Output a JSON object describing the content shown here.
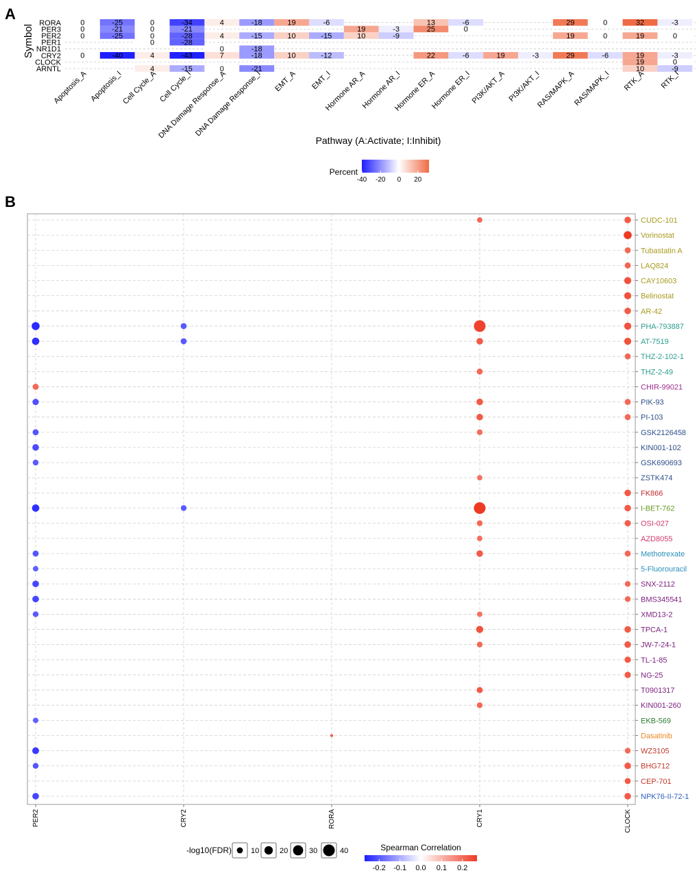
{
  "panel_a": {
    "panel_label": "A",
    "chart_data": {
      "type": "heatmap",
      "ylabel": "Symbol",
      "xlabel": "Pathway (A:Activate; I:Inhibit)",
      "legend_title": "Percent",
      "legend_ticks": [
        "-40",
        "-20",
        "0",
        "20"
      ],
      "color_range": [
        -40,
        32
      ],
      "rows": [
        "RORA",
        "PER3",
        "PER2",
        "PER1",
        "NR1D1",
        "CRY2",
        "CLOCK",
        "ARNTL"
      ],
      "columns": [
        "Apoptosis_A",
        "Apoptosis_I",
        "Cell Cycle_A",
        "Cell Cycle_I",
        "DNA Damage Response_A",
        "DNA Damage Response_I",
        "EMT_A",
        "EMT_I",
        "Hormone AR_A",
        "Hormone AR_I",
        "Hormone ER_A",
        "Hormone ER_I",
        "PI3K/AKT_A",
        "PI3K/AKT_I",
        "RAS/MAPK_A",
        "RAS/MAPK_I",
        "RTK_A",
        "RTK_I"
      ],
      "cells": [
        {
          "row": "RORA",
          "col": "Apoptosis_A",
          "value": 0
        },
        {
          "row": "RORA",
          "col": "Apoptosis_I",
          "value": -25
        },
        {
          "row": "RORA",
          "col": "Cell Cycle_A",
          "value": 0
        },
        {
          "row": "RORA",
          "col": "Cell Cycle_I",
          "value": -34
        },
        {
          "row": "RORA",
          "col": "DNA Damage Response_A",
          "value": 4
        },
        {
          "row": "RORA",
          "col": "DNA Damage Response_I",
          "value": -18
        },
        {
          "row": "RORA",
          "col": "EMT_A",
          "value": 19
        },
        {
          "row": "RORA",
          "col": "EMT_I",
          "value": -6
        },
        {
          "row": "RORA",
          "col": "Hormone ER_A",
          "value": 13
        },
        {
          "row": "RORA",
          "col": "Hormone ER_I",
          "value": -6
        },
        {
          "row": "RORA",
          "col": "RAS/MAPK_A",
          "value": 29
        },
        {
          "row": "RORA",
          "col": "RAS/MAPK_I",
          "value": 0
        },
        {
          "row": "RORA",
          "col": "RTK_A",
          "value": 32
        },
        {
          "row": "RORA",
          "col": "RTK_I",
          "value": -3
        },
        {
          "row": "PER3",
          "col": "Apoptosis_A",
          "value": 0
        },
        {
          "row": "PER3",
          "col": "Apoptosis_I",
          "value": -21
        },
        {
          "row": "PER3",
          "col": "Cell Cycle_A",
          "value": 0
        },
        {
          "row": "PER3",
          "col": "Cell Cycle_I",
          "value": -21
        },
        {
          "row": "PER3",
          "col": "Hormone AR_A",
          "value": 19
        },
        {
          "row": "PER3",
          "col": "Hormone AR_I",
          "value": -3
        },
        {
          "row": "PER3",
          "col": "Hormone ER_A",
          "value": 25
        },
        {
          "row": "PER3",
          "col": "Hormone ER_I",
          "value": 0
        },
        {
          "row": "PER2",
          "col": "Apoptosis_A",
          "value": 0
        },
        {
          "row": "PER2",
          "col": "Apoptosis_I",
          "value": -25
        },
        {
          "row": "PER2",
          "col": "Cell Cycle_A",
          "value": 0
        },
        {
          "row": "PER2",
          "col": "Cell Cycle_I",
          "value": -28
        },
        {
          "row": "PER2",
          "col": "DNA Damage Response_A",
          "value": 4
        },
        {
          "row": "PER2",
          "col": "DNA Damage Response_I",
          "value": -15
        },
        {
          "row": "PER2",
          "col": "EMT_A",
          "value": 10
        },
        {
          "row": "PER2",
          "col": "EMT_I",
          "value": -15
        },
        {
          "row": "PER2",
          "col": "Hormone AR_A",
          "value": 10
        },
        {
          "row": "PER2",
          "col": "Hormone AR_I",
          "value": -9
        },
        {
          "row": "PER2",
          "col": "RAS/MAPK_A",
          "value": 19
        },
        {
          "row": "PER2",
          "col": "RAS/MAPK_I",
          "value": 0
        },
        {
          "row": "PER2",
          "col": "RTK_A",
          "value": 19
        },
        {
          "row": "PER2",
          "col": "RTK_I",
          "value": 0
        },
        {
          "row": "PER1",
          "col": "Cell Cycle_A",
          "value": 0
        },
        {
          "row": "PER1",
          "col": "Cell Cycle_I",
          "value": -28
        },
        {
          "row": "NR1D1",
          "col": "DNA Damage Response_A",
          "value": 0
        },
        {
          "row": "NR1D1",
          "col": "DNA Damage Response_I",
          "value": -18
        },
        {
          "row": "CRY2",
          "col": "Apoptosis_A",
          "value": 0
        },
        {
          "row": "CRY2",
          "col": "Apoptosis_I",
          "value": -40
        },
        {
          "row": "CRY2",
          "col": "Cell Cycle_A",
          "value": 4
        },
        {
          "row": "CRY2",
          "col": "Cell Cycle_I",
          "value": -43
        },
        {
          "row": "CRY2",
          "col": "DNA Damage Response_A",
          "value": 7
        },
        {
          "row": "CRY2",
          "col": "DNA Damage Response_I",
          "value": -18
        },
        {
          "row": "CRY2",
          "col": "EMT_A",
          "value": 10
        },
        {
          "row": "CRY2",
          "col": "EMT_I",
          "value": -12
        },
        {
          "row": "CRY2",
          "col": "Hormone ER_A",
          "value": 22
        },
        {
          "row": "CRY2",
          "col": "Hormone ER_I",
          "value": -6
        },
        {
          "row": "CRY2",
          "col": "PI3K/AKT_A",
          "value": 19
        },
        {
          "row": "CRY2",
          "col": "PI3K/AKT_I",
          "value": -3
        },
        {
          "row": "CRY2",
          "col": "RAS/MAPK_A",
          "value": 29
        },
        {
          "row": "CRY2",
          "col": "RAS/MAPK_I",
          "value": -6
        },
        {
          "row": "CRY2",
          "col": "RTK_A",
          "value": 19
        },
        {
          "row": "CRY2",
          "col": "RTK_I",
          "value": -3
        },
        {
          "row": "CLOCK",
          "col": "RTK_A",
          "value": 19
        },
        {
          "row": "CLOCK",
          "col": "RTK_I",
          "value": 0
        },
        {
          "row": "ARNTL",
          "col": "Cell Cycle_A",
          "value": 4
        },
        {
          "row": "ARNTL",
          "col": "Cell Cycle_I",
          "value": -15
        },
        {
          "row": "ARNTL",
          "col": "DNA Damage Response_A",
          "value": 0
        },
        {
          "row": "ARNTL",
          "col": "DNA Damage Response_I",
          "value": -21
        },
        {
          "row": "ARNTL",
          "col": "RTK_A",
          "value": 10
        },
        {
          "row": "ARNTL",
          "col": "RTK_I",
          "value": -9
        }
      ]
    }
  },
  "panel_b": {
    "panel_label": "B",
    "chart_data": {
      "type": "scatter",
      "genes": [
        "PER2",
        "CRY2",
        "RORA",
        "CRY1",
        "CLOCK"
      ],
      "drugs": [
        {
          "name": "CUDC-101",
          "color": "#a89a1e"
        },
        {
          "name": "Vorinostat",
          "color": "#a89a1e"
        },
        {
          "name": "Tubastatin A",
          "color": "#a89a1e"
        },
        {
          "name": "LAQ824",
          "color": "#a89a1e"
        },
        {
          "name": "CAY10603",
          "color": "#a89a1e"
        },
        {
          "name": "Belinostat",
          "color": "#a89a1e"
        },
        {
          "name": "AR-42",
          "color": "#a89a1e"
        },
        {
          "name": "PHA-793887",
          "color": "#2a9d8f"
        },
        {
          "name": "AT-7519",
          "color": "#2a9d8f"
        },
        {
          "name": "THZ-2-102-1",
          "color": "#2a9d8f"
        },
        {
          "name": "THZ-2-49",
          "color": "#2a9d8f"
        },
        {
          "name": "CHIR-99021",
          "color": "#9b2f8c"
        },
        {
          "name": "PIK-93",
          "color": "#2d4e8a"
        },
        {
          "name": "PI-103",
          "color": "#2d4e8a"
        },
        {
          "name": "GSK2126458",
          "color": "#2d4e8a"
        },
        {
          "name": "KIN001-102",
          "color": "#2d4e8a"
        },
        {
          "name": "GSK690693",
          "color": "#2d4e8a"
        },
        {
          "name": "ZSTK474",
          "color": "#2d4e8a"
        },
        {
          "name": "FK866",
          "color": "#c0282d"
        },
        {
          "name": "I-BET-762",
          "color": "#6a9a2a"
        },
        {
          "name": "OSI-027",
          "color": "#d33a6a"
        },
        {
          "name": "AZD8055",
          "color": "#d33a6a"
        },
        {
          "name": "Methotrexate",
          "color": "#2a8fb8"
        },
        {
          "name": "5-Fluorouracil",
          "color": "#2a8fb8"
        },
        {
          "name": "SNX-2112",
          "color": "#7b1e7e"
        },
        {
          "name": "BMS345541",
          "color": "#7b1e7e"
        },
        {
          "name": "XMD13-2",
          "color": "#7b1e7e"
        },
        {
          "name": "TPCA-1",
          "color": "#7b1e7e"
        },
        {
          "name": "JW-7-24-1",
          "color": "#7b1e7e"
        },
        {
          "name": "TL-1-85",
          "color": "#7b1e7e"
        },
        {
          "name": "NG-25",
          "color": "#7b1e7e"
        },
        {
          "name": "T0901317",
          "color": "#7b1e7e"
        },
        {
          "name": "KIN001-260",
          "color": "#7b1e7e"
        },
        {
          "name": "EKB-569",
          "color": "#2e7d32"
        },
        {
          "name": "Dasatinib",
          "color": "#e8871e"
        },
        {
          "name": "WZ3105",
          "color": "#c0392b"
        },
        {
          "name": "BHG712",
          "color": "#c0392b"
        },
        {
          "name": "CEP-701",
          "color": "#c0392b"
        },
        {
          "name": "NPK76-II-72-1",
          "color": "#2d5fbf"
        }
      ],
      "points": [
        {
          "gene": "CRY1",
          "drug": "CUDC-101",
          "corr": 0.17,
          "fdr": 8
        },
        {
          "gene": "CLOCK",
          "drug": "CUDC-101",
          "corr": 0.2,
          "fdr": 12
        },
        {
          "gene": "CLOCK",
          "drug": "Vorinostat",
          "corr": 0.27,
          "fdr": 18
        },
        {
          "gene": "CLOCK",
          "drug": "Tubastatin A",
          "corr": 0.17,
          "fdr": 10
        },
        {
          "gene": "CLOCK",
          "drug": "LAQ824",
          "corr": 0.18,
          "fdr": 10
        },
        {
          "gene": "CLOCK",
          "drug": "CAY10603",
          "corr": 0.22,
          "fdr": 14
        },
        {
          "gene": "CLOCK",
          "drug": "Belinostat",
          "corr": 0.22,
          "fdr": 14
        },
        {
          "gene": "CLOCK",
          "drug": "AR-42",
          "corr": 0.2,
          "fdr": 12
        },
        {
          "gene": "PER2",
          "drug": "PHA-793887",
          "corr": -0.25,
          "fdr": 18
        },
        {
          "gene": "CRY2",
          "drug": "PHA-793887",
          "corr": -0.16,
          "fdr": 10
        },
        {
          "gene": "CRY1",
          "drug": "PHA-793887",
          "corr": 0.25,
          "fdr": 40
        },
        {
          "gene": "CLOCK",
          "drug": "PHA-793887",
          "corr": 0.22,
          "fdr": 14
        },
        {
          "gene": "PER2",
          "drug": "AT-7519",
          "corr": -0.24,
          "fdr": 15
        },
        {
          "gene": "CRY2",
          "drug": "AT-7519",
          "corr": -0.16,
          "fdr": 10
        },
        {
          "gene": "CRY1",
          "drug": "AT-7519",
          "corr": 0.2,
          "fdr": 12
        },
        {
          "gene": "CLOCK",
          "drug": "AT-7519",
          "corr": 0.22,
          "fdr": 14
        },
        {
          "gene": "CLOCK",
          "drug": "THZ-2-102-1",
          "corr": 0.17,
          "fdr": 10
        },
        {
          "gene": "CRY1",
          "drug": "THZ-2-49",
          "corr": 0.17,
          "fdr": 10
        },
        {
          "gene": "PER2",
          "drug": "CHIR-99021",
          "corr": 0.17,
          "fdr": 10
        },
        {
          "gene": "PER2",
          "drug": "PIK-93",
          "corr": -0.18,
          "fdr": 11
        },
        {
          "gene": "CRY1",
          "drug": "PIK-93",
          "corr": 0.2,
          "fdr": 12
        },
        {
          "gene": "CLOCK",
          "drug": "PIK-93",
          "corr": 0.17,
          "fdr": 10
        },
        {
          "gene": "CRY1",
          "drug": "PI-103",
          "corr": 0.2,
          "fdr": 12
        },
        {
          "gene": "CLOCK",
          "drug": "PI-103",
          "corr": 0.17,
          "fdr": 10
        },
        {
          "gene": "PER2",
          "drug": "GSK2126458",
          "corr": -0.17,
          "fdr": 10
        },
        {
          "gene": "CRY1",
          "drug": "GSK2126458",
          "corr": 0.16,
          "fdr": 9
        },
        {
          "gene": "PER2",
          "drug": "KIN001-102",
          "corr": -0.19,
          "fdr": 12
        },
        {
          "gene": "PER2",
          "drug": "GSK690693",
          "corr": -0.16,
          "fdr": 9
        },
        {
          "gene": "CRY1",
          "drug": "ZSTK474",
          "corr": 0.15,
          "fdr": 8
        },
        {
          "gene": "CLOCK",
          "drug": "FK866",
          "corr": 0.2,
          "fdr": 12
        },
        {
          "gene": "PER2",
          "drug": "I-BET-762",
          "corr": -0.24,
          "fdr": 15
        },
        {
          "gene": "CRY2",
          "drug": "I-BET-762",
          "corr": -0.16,
          "fdr": 9
        },
        {
          "gene": "CRY1",
          "drug": "I-BET-762",
          "corr": 0.27,
          "fdr": 40
        },
        {
          "gene": "CLOCK",
          "drug": "I-BET-762",
          "corr": 0.2,
          "fdr": 12
        },
        {
          "gene": "CRY1",
          "drug": "OSI-027",
          "corr": 0.17,
          "fdr": 9
        },
        {
          "gene": "CLOCK",
          "drug": "OSI-027",
          "corr": 0.19,
          "fdr": 11
        },
        {
          "gene": "CRY1",
          "drug": "AZD8055",
          "corr": 0.16,
          "fdr": 8
        },
        {
          "gene": "PER2",
          "drug": "Methotrexate",
          "corr": -0.17,
          "fdr": 10
        },
        {
          "gene": "CRY1",
          "drug": "Methotrexate",
          "corr": 0.2,
          "fdr": 12
        },
        {
          "gene": "CLOCK",
          "drug": "Methotrexate",
          "corr": 0.17,
          "fdr": 10
        },
        {
          "gene": "PER2",
          "drug": "5-Fluorouracil",
          "corr": -0.15,
          "fdr": 8
        },
        {
          "gene": "PER2",
          "drug": "SNX-2112",
          "corr": -0.2,
          "fdr": 12
        },
        {
          "gene": "CLOCK",
          "drug": "SNX-2112",
          "corr": 0.17,
          "fdr": 9
        },
        {
          "gene": "PER2",
          "drug": "BMS345541",
          "corr": -0.2,
          "fdr": 12
        },
        {
          "gene": "CLOCK",
          "drug": "BMS345541",
          "corr": 0.17,
          "fdr": 9
        },
        {
          "gene": "PER2",
          "drug": "XMD13-2",
          "corr": -0.16,
          "fdr": 9
        },
        {
          "gene": "CRY1",
          "drug": "XMD13-2",
          "corr": 0.15,
          "fdr": 8
        },
        {
          "gene": "CRY1",
          "drug": "TPCA-1",
          "corr": 0.22,
          "fdr": 14
        },
        {
          "gene": "CLOCK",
          "drug": "TPCA-1",
          "corr": 0.2,
          "fdr": 12
        },
        {
          "gene": "CRY1",
          "drug": "JW-7-24-1",
          "corr": 0.17,
          "fdr": 9
        },
        {
          "gene": "CLOCK",
          "drug": "JW-7-24-1",
          "corr": 0.2,
          "fdr": 12
        },
        {
          "gene": "CLOCK",
          "drug": "TL-1-85",
          "corr": 0.2,
          "fdr": 11
        },
        {
          "gene": "CLOCK",
          "drug": "NG-25",
          "corr": 0.2,
          "fdr": 11
        },
        {
          "gene": "CRY1",
          "drug": "T0901317",
          "corr": 0.2,
          "fdr": 10
        },
        {
          "gene": "CRY1",
          "drug": "KIN001-260",
          "corr": 0.17,
          "fdr": 9
        },
        {
          "gene": "PER2",
          "drug": "EKB-569",
          "corr": -0.15,
          "fdr": 8
        },
        {
          "gene": "RORA",
          "drug": "Dasatinib",
          "corr": 0.2,
          "fdr": 2
        },
        {
          "gene": "PER2",
          "drug": "WZ3105",
          "corr": -0.22,
          "fdr": 13
        },
        {
          "gene": "CLOCK",
          "drug": "WZ3105",
          "corr": 0.17,
          "fdr": 9
        },
        {
          "gene": "PER2",
          "drug": "BHG712",
          "corr": -0.17,
          "fdr": 9
        },
        {
          "gene": "CLOCK",
          "drug": "BHG712",
          "corr": 0.2,
          "fdr": 12
        },
        {
          "gene": "CLOCK",
          "drug": "CEP-701",
          "corr": 0.2,
          "fdr": 10
        },
        {
          "gene": "PER2",
          "drug": "NPK76-II-72-1",
          "corr": -0.2,
          "fdr": 12
        },
        {
          "gene": "CLOCK",
          "drug": "NPK76-II-72-1",
          "corr": 0.2,
          "fdr": 12
        }
      ],
      "size_legend": {
        "title": "-log10(FDR)",
        "values": [
          10,
          20,
          30,
          40
        ],
        "labels": [
          "10",
          "20",
          "30",
          "40"
        ]
      },
      "color_legend": {
        "title": "Spearman Correlation",
        "ticks": [
          -0.2,
          -0.1,
          0.0,
          0.1,
          0.2
        ],
        "labels": [
          "-0.2",
          "-0.1",
          "0.0",
          "0.1",
          "0.2"
        ],
        "range": [
          -0.27,
          0.27
        ]
      }
    }
  },
  "colors": {
    "negative": "#1f1fff",
    "neutral": "#ffffff",
    "positive": "#ee3a22",
    "percent_negative": "#1f1fff",
    "percent_positive": "#ef6b45"
  }
}
